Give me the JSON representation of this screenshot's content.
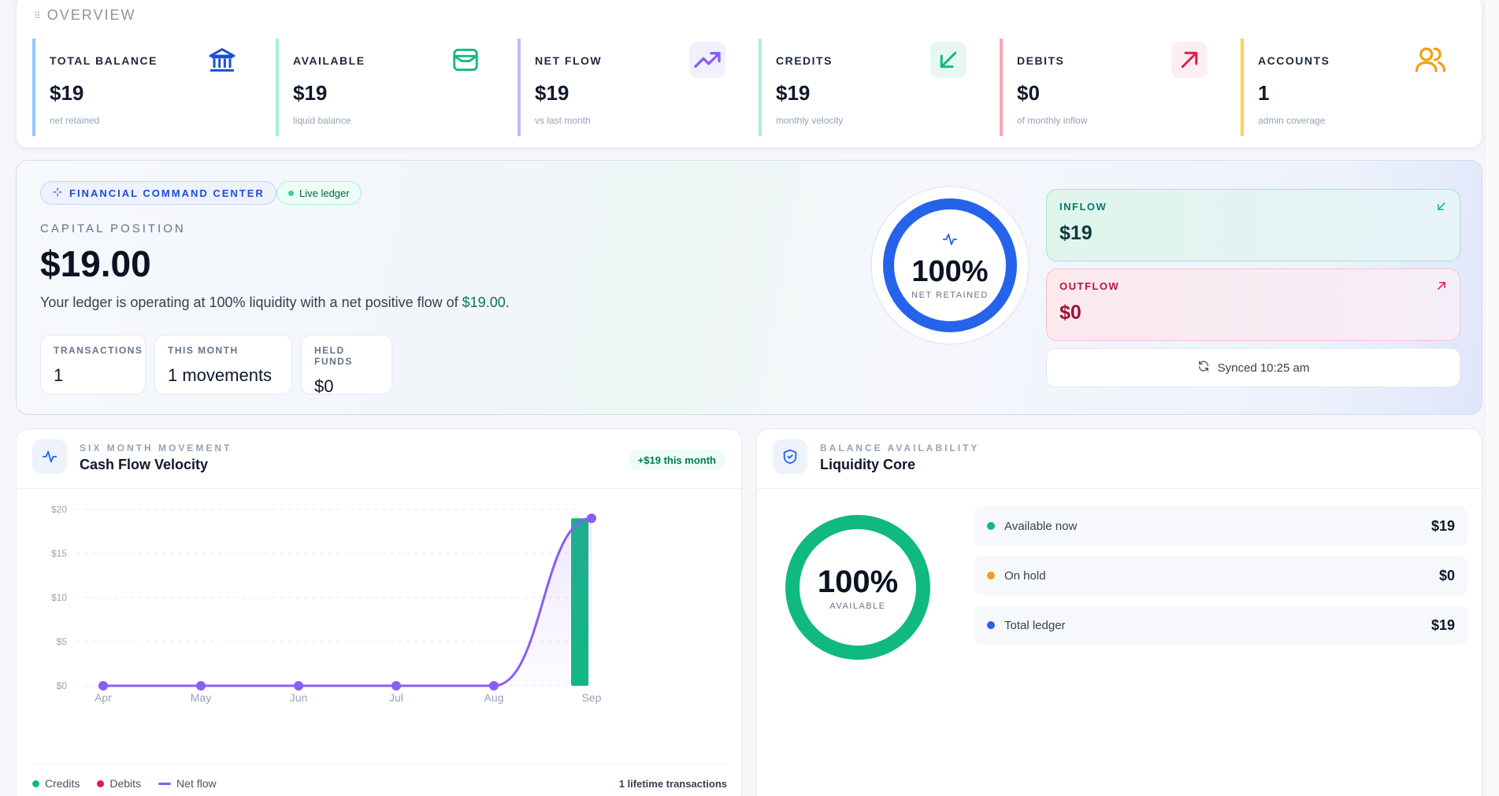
{
  "overview": {
    "title": "OVERVIEW",
    "stats": [
      {
        "label": "TOTAL BALANCE",
        "value": "$19",
        "sub": "net retained",
        "accent": "#93c5fd",
        "icon": "bank-icon"
      },
      {
        "label": "AVAILABLE",
        "value": "$19",
        "sub": "liquid balance",
        "accent": "#a7f3d0",
        "icon": "wallet-icon"
      },
      {
        "label": "NET FLOW",
        "value": "$19",
        "sub": "vs last month",
        "accent": "#c4b5fd",
        "icon": "trending-up-icon"
      },
      {
        "label": "CREDITS",
        "value": "$19",
        "sub": "monthly velocity",
        "accent": "#a7f3d0",
        "icon": "arrow-down-left-icon"
      },
      {
        "label": "DEBITS",
        "value": "$0",
        "sub": "of monthly inflow",
        "accent": "#fda4af",
        "icon": "arrow-up-right-icon"
      },
      {
        "label": "ACCOUNTS",
        "value": "1",
        "sub": "admin coverage",
        "accent": "#fcd34d",
        "icon": "users-icon"
      }
    ]
  },
  "capital": {
    "badge": "FINANCIAL COMMAND CENTER",
    "live": "Live ledger",
    "label": "CAPITAL POSITION",
    "value": "$19.00",
    "desc_prefix": "Your ledger is operating at 100% liquidity with a net positive flow of ",
    "desc_amount": "$19.00",
    "desc_suffix": ".",
    "mini": [
      {
        "label": "TRANSACTIONS",
        "value": "1"
      },
      {
        "label": "THIS MONTH",
        "value": "1 movements"
      },
      {
        "label": "HELD FUNDS",
        "value": "$0"
      }
    ],
    "ring": {
      "pct": "100%",
      "caption": "NET RETAINED",
      "fraction": 1.0
    },
    "inflow": {
      "label": "INFLOW",
      "value": "$19"
    },
    "outflow": {
      "label": "OUTFLOW",
      "value": "$0"
    },
    "synced": "Synced 10:25 am"
  },
  "cashflow": {
    "eyebrow": "SIX MONTH MOVEMENT",
    "title": "Cash Flow Velocity",
    "badge": "+$19 this month",
    "legend": {
      "credits": "Credits",
      "debits": "Debits",
      "net": "Net flow"
    },
    "total": "1 lifetime transactions"
  },
  "chart_data": {
    "type": "bar",
    "categories": [
      "Apr",
      "May",
      "Jun",
      "Jul",
      "Aug",
      "Sep"
    ],
    "series": [
      {
        "name": "Credits",
        "type": "bar",
        "values": [
          0,
          0,
          0,
          0,
          0,
          19
        ],
        "color": "#10b981"
      },
      {
        "name": "Debits",
        "type": "bar",
        "values": [
          0,
          0,
          0,
          0,
          0,
          0
        ],
        "color": "#e11d48"
      },
      {
        "name": "Net flow",
        "type": "line",
        "values": [
          0,
          0,
          0,
          0,
          0,
          19
        ],
        "color": "#8b5cf6"
      }
    ],
    "yticks": [
      "$0",
      "$5",
      "$10",
      "$15",
      "$20"
    ],
    "ylim": [
      0,
      20
    ],
    "grid": true,
    "legend": "bottom-left"
  },
  "liquidity": {
    "eyebrow": "BALANCE AVAILABILITY",
    "title": "Liquidity Core",
    "ring": {
      "pct": "100%",
      "caption": "AVAILABLE",
      "fraction": 1.0
    },
    "rows": [
      {
        "label": "Available now",
        "value": "$19",
        "color": "#10b981"
      },
      {
        "label": "On hold",
        "value": "$0",
        "color": "#f59e0b"
      },
      {
        "label": "Total ledger",
        "value": "$19",
        "color": "#2563eb"
      }
    ]
  }
}
